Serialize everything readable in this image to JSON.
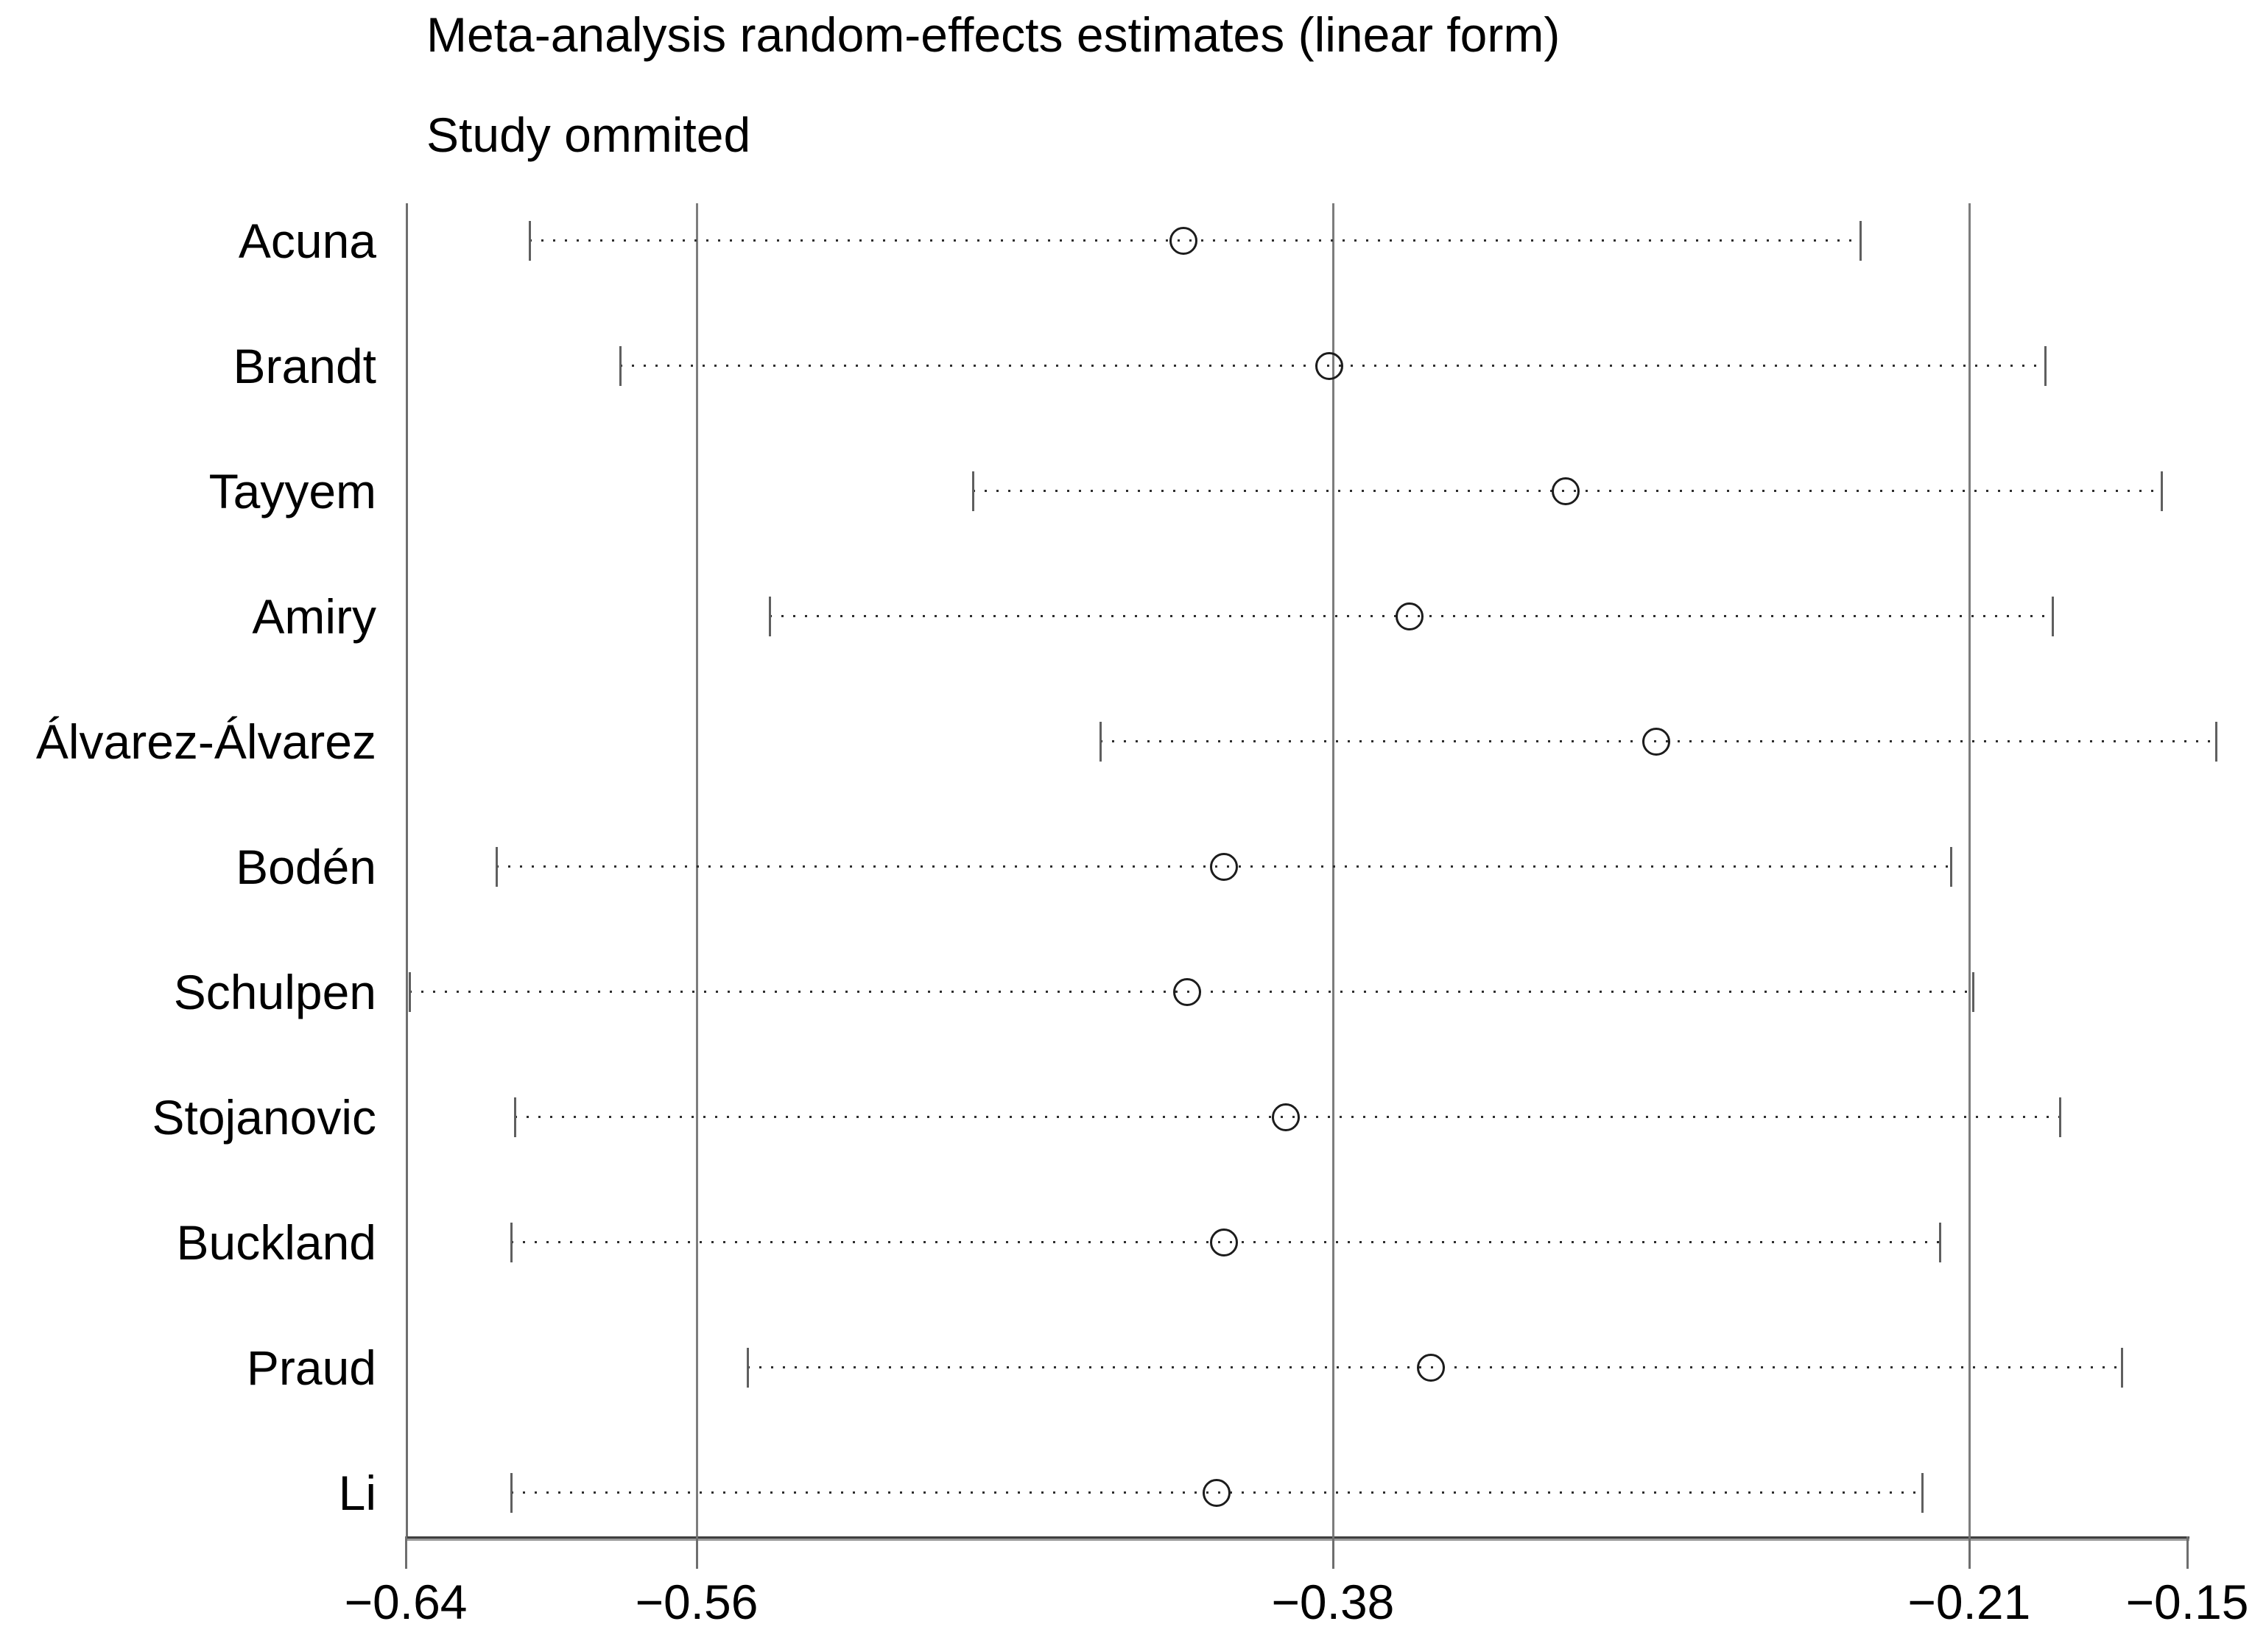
{
  "page": {
    "background": "#ffffff"
  },
  "colors": {
    "text": "#000000",
    "plot_border": "#6e6e6e",
    "reference_line": "#7d7d7d",
    "axis_line_dark": "#3f3f3f",
    "axis_line_light": "#9a9a9a",
    "ci_dots": "#2e2e2e",
    "ci_end_tick": "#5f5f5f",
    "marker_stroke": "#1c1c1c"
  },
  "chart_data": {
    "type": "forest",
    "title": "Meta-analysis random-effects estimates (linear form)",
    "subtitle": "Study ommited",
    "xlabel": "",
    "ylabel": "",
    "xlim": [
      -0.64,
      -0.15
    ],
    "grid": false,
    "legend": "none",
    "x_ticks": [
      {
        "label": "−0.64",
        "value": -0.64
      },
      {
        "label": "−0.56",
        "value": -0.56
      },
      {
        "label": "−0.38",
        "value": -0.385
      },
      {
        "label": "−0.21",
        "value": -0.21
      },
      {
        "label": "−0.15",
        "value": -0.15
      }
    ],
    "overall": {
      "lower": -0.56,
      "estimate": -0.385,
      "upper": -0.21
    },
    "reference_line_values": [
      -0.56,
      -0.385,
      -0.21
    ],
    "studies": [
      {
        "label": "Acuna",
        "lower": -0.606,
        "estimate": -0.426,
        "upper": -0.24
      },
      {
        "label": "Brandt",
        "lower": -0.581,
        "estimate": -0.386,
        "upper": -0.189
      },
      {
        "label": "Tayyem",
        "lower": -0.484,
        "estimate": -0.321,
        "upper": -0.157
      },
      {
        "label": "Amiry",
        "lower": -0.54,
        "estimate": -0.364,
        "upper": -0.187
      },
      {
        "label": "Álvarez-Álvarez",
        "lower": -0.449,
        "estimate": -0.296,
        "upper": -0.142
      },
      {
        "label": "Bodén",
        "lower": -0.615,
        "estimate": -0.415,
        "upper": -0.215
      },
      {
        "label": "Schulpen",
        "lower": -0.639,
        "estimate": -0.425,
        "upper": -0.209
      },
      {
        "label": "Stojanovic",
        "lower": -0.61,
        "estimate": -0.398,
        "upper": -0.185
      },
      {
        "label": "Buckland",
        "lower": -0.611,
        "estimate": -0.415,
        "upper": -0.218
      },
      {
        "label": "Praud",
        "lower": -0.546,
        "estimate": -0.358,
        "upper": -0.168
      },
      {
        "label": "Li",
        "lower": -0.611,
        "estimate": -0.417,
        "upper": -0.223
      }
    ]
  }
}
